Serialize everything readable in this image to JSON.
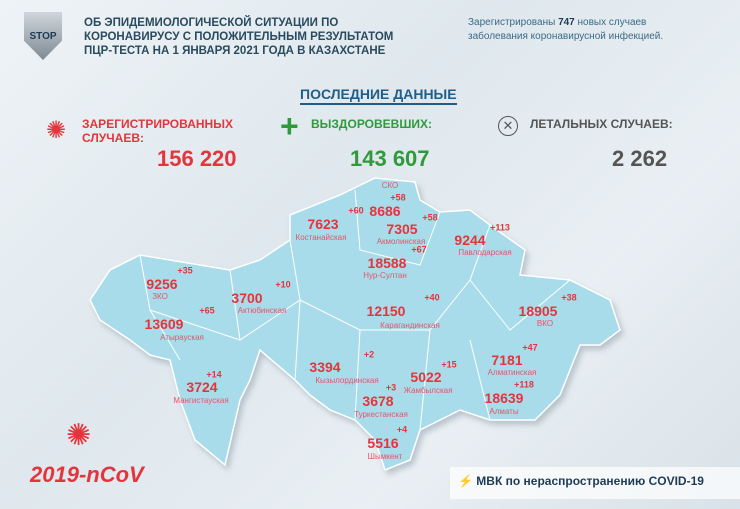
{
  "header": {
    "logo_text": "STOP",
    "title_lines": [
      "ОБ ЭПИДЕМИОЛОГИЧЕСКОЙ СИТУАЦИИ ПО",
      "КОРОНАВИРУСУ С ПОЛОЖИТЕЛЬНЫМ РЕЗУЛЬТАТОМ",
      "ПЦР-ТЕСТА НА 1 ЯНВАРЯ 2021 ГОДА В КАЗАХСТАНЕ"
    ],
    "news_prefix": "Зарегистрированы",
    "news_count": "747",
    "news_suffix": "новых случаев",
    "news_line2": "заболевания коронавирусной инфекцией."
  },
  "latest_title": "ПОСЛЕДНИЕ ДАННЫЕ",
  "stats": {
    "registered": {
      "label1": "ЗАРЕГИСТРИРОВАННЫХ",
      "label2": "СЛУЧАЕВ:",
      "value": "156 220",
      "icon": "virus-icon"
    },
    "recovered": {
      "label": "ВЫЗДОРОВЕВШИХ:",
      "value": "143 607",
      "icon": "plus-icon"
    },
    "deaths": {
      "label": "ЛЕТАЛЬНЫХ СЛУЧАЕВ:",
      "value": "2 262",
      "icon": "x-circle-icon"
    }
  },
  "regions": [
    {
      "name": "СКО",
      "value": "8686",
      "delta": "+58"
    },
    {
      "name": "Костанайская",
      "value": "7623",
      "delta": "+60"
    },
    {
      "name": "Акмолинская",
      "value": "7305",
      "delta": "+58"
    },
    {
      "name": "Павлодарская",
      "value": "9244",
      "delta": "+113"
    },
    {
      "name": "Нур-Султан",
      "value": "18588",
      "delta": "+67"
    },
    {
      "name": "ЗКО",
      "value": "9256",
      "delta": "+35"
    },
    {
      "name": "Актюбинская",
      "value": "3700",
      "delta": "+10"
    },
    {
      "name": "Карагандинская",
      "value": "12150",
      "delta": "+40"
    },
    {
      "name": "ВКО",
      "value": "18905",
      "delta": "+38"
    },
    {
      "name": "Атырауская",
      "value": "13609",
      "delta": "+65"
    },
    {
      "name": "Кызылординская",
      "value": "3394",
      "delta": "+2"
    },
    {
      "name": "Алматинская",
      "value": "7181",
      "delta": "+47"
    },
    {
      "name": "Жамбылская",
      "value": "5022",
      "delta": "+15"
    },
    {
      "name": "Мангистауская",
      "value": "3724",
      "delta": "+14"
    },
    {
      "name": "Туркестанская",
      "value": "3678",
      "delta": "+3"
    },
    {
      "name": "Алматы",
      "value": "18639",
      "delta": "+118"
    },
    {
      "name": "Шымкент",
      "value": "5516",
      "delta": "+4"
    }
  ],
  "colors": {
    "map_fill": "#a9dcea",
    "accent_red": "#e3353b",
    "accent_green": "#2e9a3a",
    "title_blue": "#1f5e88"
  },
  "ncov_label": "2019-nCoV",
  "footer": {
    "text": "МВК по нераспространению COVID-19",
    "icon": "lightning-icon"
  }
}
